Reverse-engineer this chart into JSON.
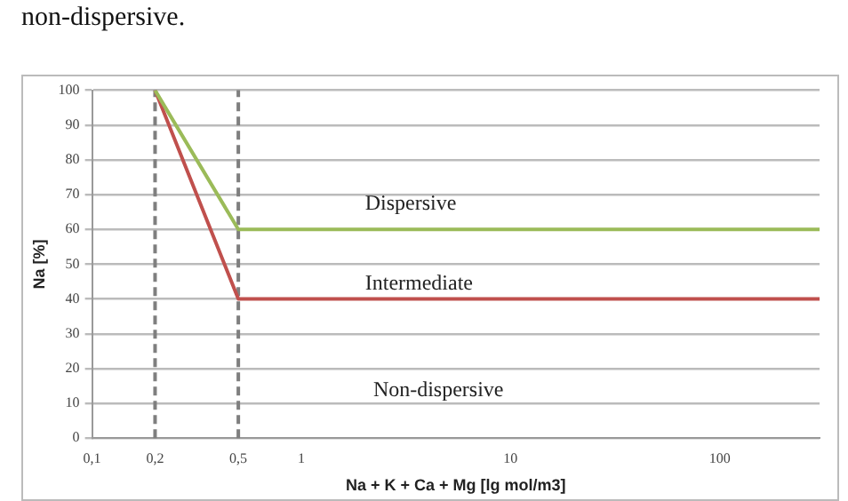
{
  "chart_data": {
    "type": "line",
    "xlabel": "Na + K + Ca + Mg [lg mol/m3]",
    "ylabel": "Na [%]",
    "log": "x",
    "xlim": [
      0.1,
      300
    ],
    "xticks": [
      {
        "value": 0.1,
        "label": "0,1"
      },
      {
        "value": 0.2,
        "label": "0,2"
      },
      {
        "value": 0.5,
        "label": "0,5"
      },
      1,
      10,
      100
    ],
    "ylim": [
      0,
      100
    ],
    "yticks": [
      0,
      10,
      20,
      30,
      40,
      50,
      60,
      70,
      80,
      90,
      100
    ],
    "grid": "y",
    "legend": false,
    "marker": "none",
    "line_style": "solid",
    "series": [
      {
        "color": "#9bbb59",
        "x": [
          0.2,
          0.5,
          300
        ],
        "values": [
          100,
          60,
          60
        ]
      },
      {
        "color": "#c0504d",
        "x": [
          0.2,
          0.5,
          300
        ],
        "values": [
          100,
          40,
          40
        ]
      }
    ],
    "ref_lines": [
      {
        "axis": "x",
        "value": 0.2,
        "color": "#7f7f7f",
        "line_style": "dashed"
      },
      {
        "axis": "x",
        "value": 0.5,
        "color": "#7f7f7f",
        "line_style": "dashed"
      }
    ],
    "annotations": [
      "non-dispersive.",
      "Dispersive",
      "Intermediate",
      "Non-dispersive"
    ]
  }
}
